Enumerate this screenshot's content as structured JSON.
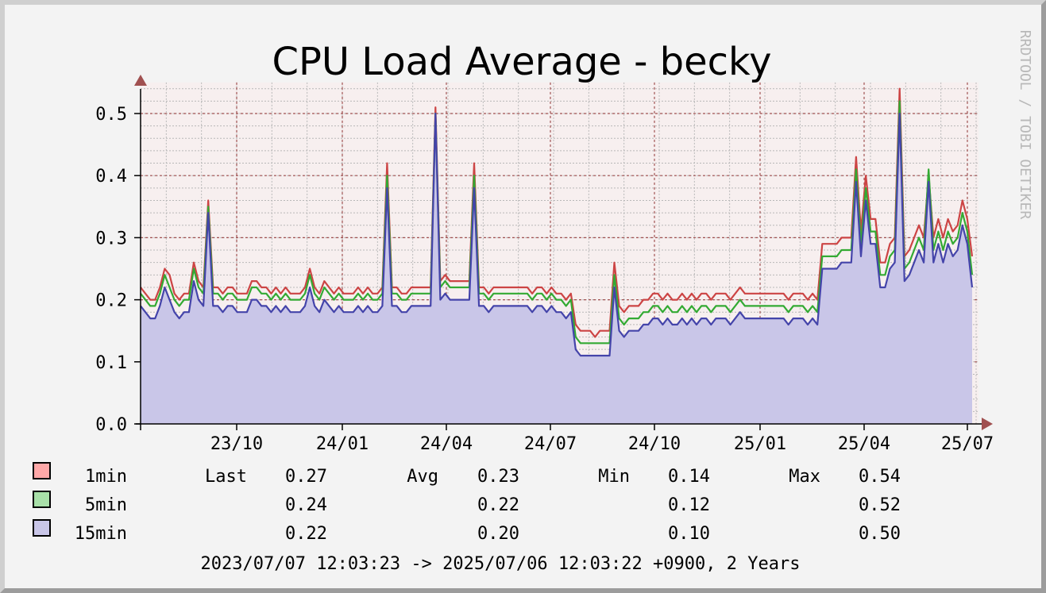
{
  "chart_data": {
    "type": "area",
    "title": "CPU Load Average - becky",
    "watermark": "RRDTOOL / TOBI OETIKER",
    "x_ticks": [
      "23/10",
      "24/01",
      "24/04",
      "24/07",
      "24/10",
      "25/01",
      "25/04",
      "25/07"
    ],
    "y_ticks": [
      "0.0",
      "0.1",
      "0.2",
      "0.3",
      "0.4",
      "0.5"
    ],
    "ylim": [
      0,
      0.55
    ],
    "grid": true,
    "colors": {
      "plot_bg": "#f7efef",
      "major_grid": "#a05050",
      "minor_grid": "#b8b8b8",
      "axis": "#000000",
      "arrow": "#a05050",
      "area_fill": "#c9c6e8"
    },
    "series": [
      {
        "name": "1min",
        "color": "#cc4444",
        "swatch": "#ffa8a8",
        "values": [
          0.22,
          0.21,
          0.2,
          0.2,
          0.22,
          0.25,
          0.24,
          0.21,
          0.2,
          0.21,
          0.21,
          0.26,
          0.23,
          0.22,
          0.36,
          0.22,
          0.22,
          0.21,
          0.22,
          0.22,
          0.21,
          0.21,
          0.21,
          0.23,
          0.23,
          0.22,
          0.22,
          0.21,
          0.22,
          0.21,
          0.22,
          0.21,
          0.21,
          0.21,
          0.22,
          0.25,
          0.22,
          0.21,
          0.23,
          0.22,
          0.21,
          0.22,
          0.21,
          0.21,
          0.21,
          0.22,
          0.21,
          0.22,
          0.21,
          0.21,
          0.22,
          0.42,
          0.22,
          0.22,
          0.21,
          0.21,
          0.22,
          0.22,
          0.22,
          0.22,
          0.22,
          0.51,
          0.23,
          0.24,
          0.23,
          0.23,
          0.23,
          0.23,
          0.23,
          0.42,
          0.22,
          0.22,
          0.21,
          0.22,
          0.22,
          0.22,
          0.22,
          0.22,
          0.22,
          0.22,
          0.22,
          0.21,
          0.22,
          0.22,
          0.21,
          0.22,
          0.21,
          0.21,
          0.2,
          0.21,
          0.16,
          0.15,
          0.15,
          0.15,
          0.14,
          0.15,
          0.15,
          0.15,
          0.26,
          0.19,
          0.18,
          0.19,
          0.19,
          0.19,
          0.2,
          0.2,
          0.21,
          0.21,
          0.2,
          0.21,
          0.2,
          0.2,
          0.21,
          0.2,
          0.21,
          0.2,
          0.21,
          0.21,
          0.2,
          0.21,
          0.21,
          0.21,
          0.2,
          0.21,
          0.22,
          0.21,
          0.21,
          0.21,
          0.21,
          0.21,
          0.21,
          0.21,
          0.21,
          0.21,
          0.2,
          0.21,
          0.21,
          0.21,
          0.2,
          0.21,
          0.2,
          0.29,
          0.29,
          0.29,
          0.29,
          0.3,
          0.3,
          0.3,
          0.43,
          0.31,
          0.4,
          0.33,
          0.33,
          0.26,
          0.26,
          0.29,
          0.3,
          0.54,
          0.27,
          0.28,
          0.3,
          0.32,
          0.3,
          0.4,
          0.3,
          0.33,
          0.3,
          0.33,
          0.31,
          0.32,
          0.36,
          0.33,
          0.27
        ]
      },
      {
        "name": "5min",
        "color": "#33aa33",
        "swatch": "#a8e0a8",
        "values": [
          0.21,
          0.2,
          0.19,
          0.19,
          0.21,
          0.24,
          0.22,
          0.2,
          0.19,
          0.2,
          0.2,
          0.25,
          0.22,
          0.21,
          0.35,
          0.21,
          0.21,
          0.2,
          0.21,
          0.21,
          0.2,
          0.2,
          0.2,
          0.22,
          0.22,
          0.21,
          0.21,
          0.2,
          0.21,
          0.2,
          0.21,
          0.2,
          0.2,
          0.2,
          0.21,
          0.24,
          0.21,
          0.2,
          0.22,
          0.21,
          0.2,
          0.21,
          0.2,
          0.2,
          0.2,
          0.21,
          0.2,
          0.21,
          0.2,
          0.2,
          0.21,
          0.4,
          0.21,
          0.21,
          0.2,
          0.2,
          0.21,
          0.21,
          0.21,
          0.21,
          0.21,
          0.5,
          0.22,
          0.23,
          0.22,
          0.22,
          0.22,
          0.22,
          0.22,
          0.4,
          0.21,
          0.21,
          0.2,
          0.21,
          0.21,
          0.21,
          0.21,
          0.21,
          0.21,
          0.21,
          0.21,
          0.2,
          0.21,
          0.21,
          0.2,
          0.21,
          0.2,
          0.2,
          0.19,
          0.2,
          0.14,
          0.13,
          0.13,
          0.13,
          0.13,
          0.13,
          0.13,
          0.13,
          0.24,
          0.17,
          0.16,
          0.17,
          0.17,
          0.17,
          0.18,
          0.18,
          0.19,
          0.19,
          0.18,
          0.19,
          0.18,
          0.18,
          0.19,
          0.18,
          0.19,
          0.18,
          0.19,
          0.19,
          0.18,
          0.19,
          0.19,
          0.19,
          0.18,
          0.19,
          0.2,
          0.19,
          0.19,
          0.19,
          0.19,
          0.19,
          0.19,
          0.19,
          0.19,
          0.19,
          0.18,
          0.19,
          0.19,
          0.19,
          0.18,
          0.19,
          0.18,
          0.27,
          0.27,
          0.27,
          0.27,
          0.28,
          0.28,
          0.28,
          0.41,
          0.29,
          0.38,
          0.31,
          0.31,
          0.24,
          0.24,
          0.27,
          0.28,
          0.52,
          0.25,
          0.26,
          0.28,
          0.3,
          0.28,
          0.41,
          0.28,
          0.31,
          0.28,
          0.31,
          0.29,
          0.3,
          0.34,
          0.31,
          0.24
        ]
      },
      {
        "name": "15min",
        "color": "#4444aa",
        "swatch": "#c9c6e8",
        "values": [
          0.19,
          0.18,
          0.17,
          0.17,
          0.19,
          0.22,
          0.2,
          0.18,
          0.17,
          0.18,
          0.18,
          0.23,
          0.2,
          0.19,
          0.34,
          0.19,
          0.19,
          0.18,
          0.19,
          0.19,
          0.18,
          0.18,
          0.18,
          0.2,
          0.2,
          0.19,
          0.19,
          0.18,
          0.19,
          0.18,
          0.19,
          0.18,
          0.18,
          0.18,
          0.19,
          0.22,
          0.19,
          0.18,
          0.2,
          0.19,
          0.18,
          0.19,
          0.18,
          0.18,
          0.18,
          0.19,
          0.18,
          0.19,
          0.18,
          0.18,
          0.19,
          0.38,
          0.19,
          0.19,
          0.18,
          0.18,
          0.19,
          0.19,
          0.19,
          0.19,
          0.19,
          0.5,
          0.2,
          0.21,
          0.2,
          0.2,
          0.2,
          0.2,
          0.2,
          0.38,
          0.19,
          0.19,
          0.18,
          0.19,
          0.19,
          0.19,
          0.19,
          0.19,
          0.19,
          0.19,
          0.19,
          0.18,
          0.19,
          0.19,
          0.18,
          0.19,
          0.18,
          0.18,
          0.17,
          0.18,
          0.12,
          0.11,
          0.11,
          0.11,
          0.11,
          0.11,
          0.11,
          0.11,
          0.22,
          0.15,
          0.14,
          0.15,
          0.15,
          0.15,
          0.16,
          0.16,
          0.17,
          0.17,
          0.16,
          0.17,
          0.16,
          0.16,
          0.17,
          0.16,
          0.17,
          0.16,
          0.17,
          0.17,
          0.16,
          0.17,
          0.17,
          0.17,
          0.16,
          0.17,
          0.18,
          0.17,
          0.17,
          0.17,
          0.17,
          0.17,
          0.17,
          0.17,
          0.17,
          0.17,
          0.16,
          0.17,
          0.17,
          0.17,
          0.16,
          0.17,
          0.16,
          0.25,
          0.25,
          0.25,
          0.25,
          0.26,
          0.26,
          0.26,
          0.39,
          0.27,
          0.36,
          0.29,
          0.29,
          0.22,
          0.22,
          0.25,
          0.26,
          0.5,
          0.23,
          0.24,
          0.26,
          0.28,
          0.26,
          0.39,
          0.26,
          0.29,
          0.26,
          0.29,
          0.27,
          0.28,
          0.32,
          0.29,
          0.22
        ]
      }
    ],
    "legend": {
      "rows": [
        {
          "label": "1min",
          "last_label": "Last",
          "last": "0.27",
          "avg_label": "Avg",
          "avg": "0.23",
          "min_label": "Min",
          "min": "0.14",
          "max_label": "Max",
          "max": "0.54"
        },
        {
          "label": "5min",
          "last_label": "",
          "last": "0.24",
          "avg_label": "",
          "avg": "0.22",
          "min_label": "",
          "min": "0.12",
          "max_label": "",
          "max": "0.52"
        },
        {
          "label": "15min",
          "last_label": "",
          "last": "0.22",
          "avg_label": "",
          "avg": "0.20",
          "min_label": "",
          "min": "0.10",
          "max_label": "",
          "max": "0.50"
        }
      ]
    },
    "time_range": "2023/07/07 12:03:23 -> 2025/07/06 12:03:22 +0900, 2 Years"
  }
}
